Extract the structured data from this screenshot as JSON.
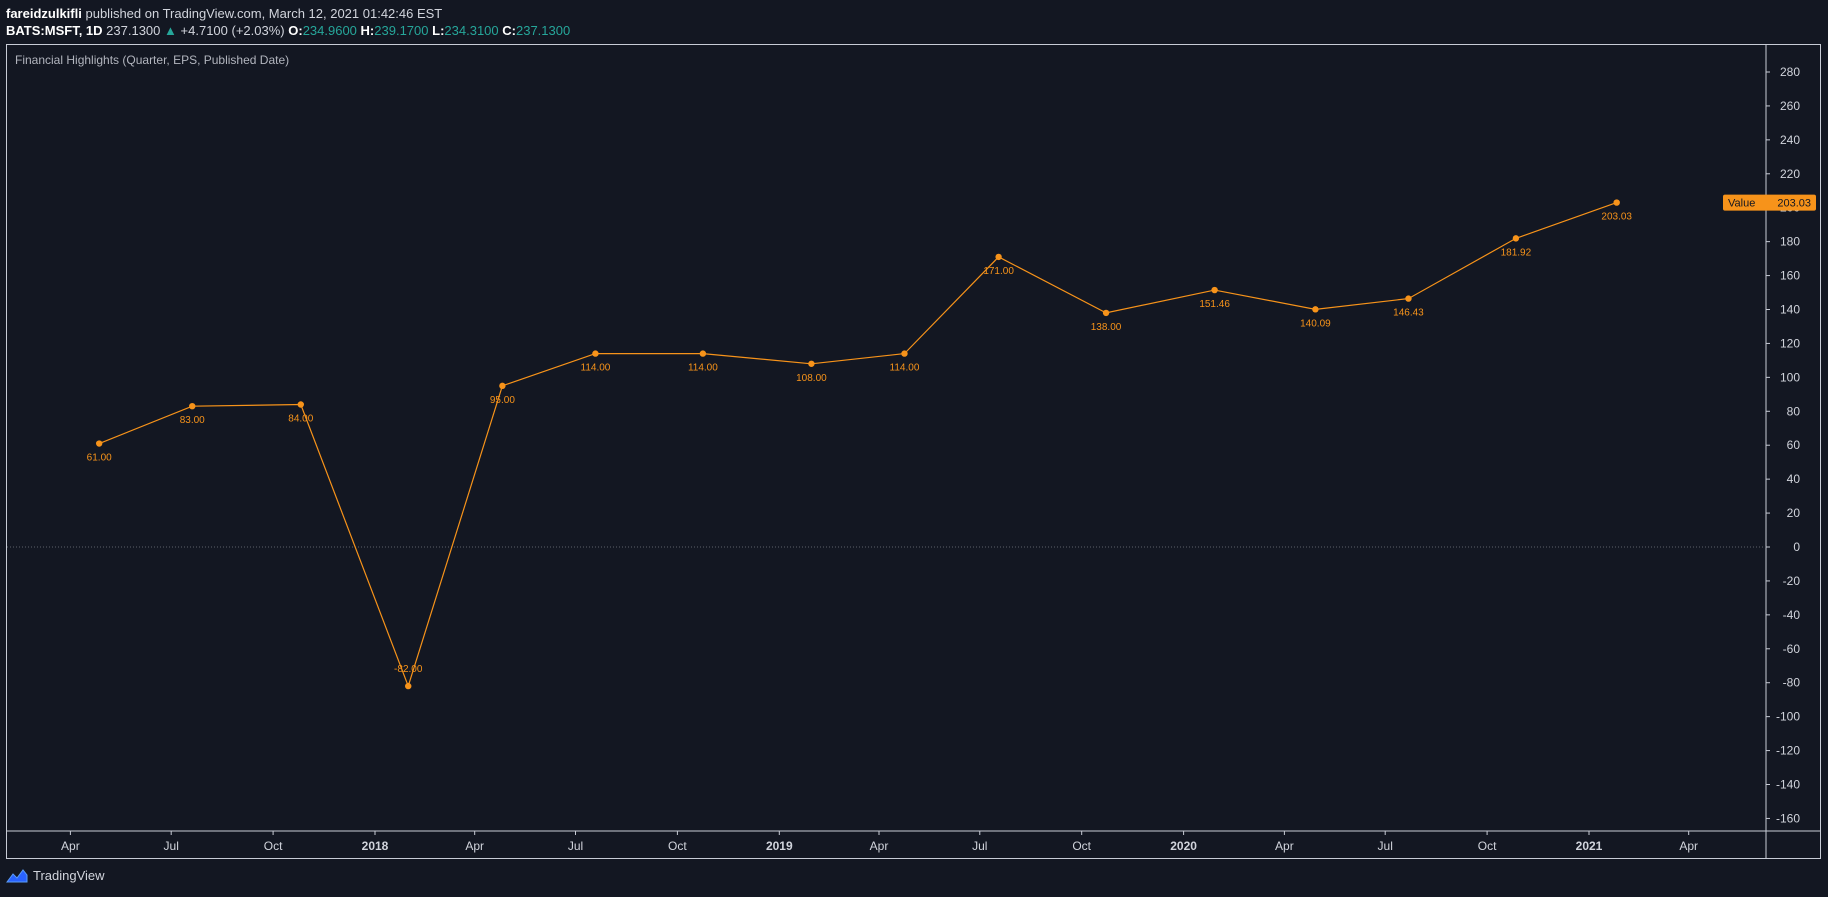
{
  "header": {
    "author": "fareidzulkifli",
    "published_text": "published on TradingView.com, March 12, 2021 01:42:46 EST",
    "symbol": "BATS:MSFT, 1D",
    "last": "237.1300",
    "change": "+4.7100 (+2.03%)",
    "o_label": "O:",
    "o_value": "234.9600",
    "h_label": "H:",
    "h_value": "239.1700",
    "l_label": "L:",
    "l_value": "234.3100",
    "c_label": "C:",
    "c_value": "237.1300"
  },
  "footer": {
    "brand": "TradingView",
    "logo_icon": "tradingview-logo-icon"
  },
  "colors": {
    "background": "#131722",
    "line": "#f7931a",
    "axis_text": "#d1d4dc",
    "teal": "#26a69a"
  },
  "chart_data": {
    "type": "line",
    "title": "Financial Highlights (Quarter, EPS, Published Date)",
    "series": [
      {
        "values": [
          61.0,
          83.0,
          84.0,
          -82.0,
          95.0,
          114.0,
          114.0,
          108.0,
          114.0,
          171.0,
          138.0,
          151.46,
          140.09,
          146.43,
          181.92,
          203.03
        ],
        "labels": [
          "61.00",
          "83.00",
          "84.00",
          "-82.00",
          "95.00",
          "114.00",
          "114.00",
          "108.00",
          "114.00",
          "171.00",
          "138.00",
          "151.46",
          "140.09",
          "146.43",
          "181.92",
          "203.03"
        ]
      }
    ],
    "x": [
      "2017-04-27",
      "2017-07-20",
      "2017-10-26",
      "2018-01-31",
      "2018-04-26",
      "2018-07-19",
      "2018-10-24",
      "2019-01-30",
      "2019-04-24",
      "2019-07-18",
      "2019-10-23",
      "2020-01-29",
      "2020-04-29",
      "2020-07-22",
      "2020-10-27",
      "2021-01-26"
    ],
    "x_ticks": [
      "Apr",
      "Jul",
      "Oct",
      "2018",
      "Apr",
      "Jul",
      "Oct",
      "2019",
      "Apr",
      "Jul",
      "Oct",
      "2020",
      "Apr",
      "Jul",
      "Oct",
      "2021",
      "Apr"
    ],
    "x_ticks_bold": [
      false,
      false,
      false,
      true,
      false,
      false,
      false,
      true,
      false,
      false,
      false,
      true,
      false,
      false,
      false,
      true,
      false
    ],
    "y_ticks": [
      "280",
      "260",
      "240",
      "220",
      "200",
      "180",
      "160",
      "140",
      "120",
      "100",
      "80",
      "60",
      "40",
      "20",
      "0",
      "-20",
      "-40",
      "-60",
      "-80",
      "-100",
      "-120",
      "-140",
      "-160"
    ],
    "ylim": [
      -170,
      295
    ],
    "last_value_label": "Value",
    "last_value": "203.03",
    "zero_line": true,
    "grid": false
  }
}
